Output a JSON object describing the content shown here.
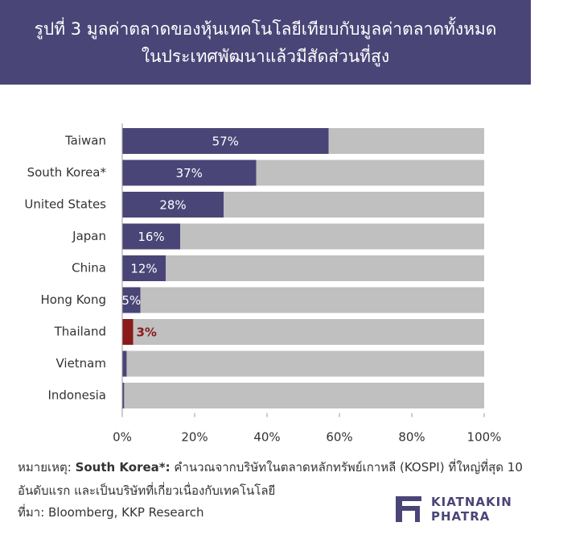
{
  "chart_data": {
    "type": "hbar",
    "title_lines": [
      "รูปที่ 3 มูลค่าตลาดของหุ้นเทคโนโลยีเทียบกับมูลค่าตลาดทั้งหมด",
      "ในประเทศพัฒนาแล้วมีสัดส่วนที่สูง"
    ],
    "categories": [
      "Taiwan",
      "South Korea*",
      "United States",
      "Japan",
      "China",
      "Hong Kong",
      "Thailand",
      "Vietnam",
      "Indonesia"
    ],
    "values": [
      57,
      37,
      28,
      16,
      12,
      5,
      3,
      1.2,
      0.5
    ],
    "value_labels": [
      "57%",
      "37%",
      "28%",
      "16%",
      "12%",
      "5%",
      "3%",
      null,
      null
    ],
    "colors": [
      "#4a4577",
      "#4a4577",
      "#4a4577",
      "#4a4577",
      "#4a4577",
      "#4a4577",
      "#8b1a1a",
      "#4a4577",
      "#4a4577"
    ],
    "track_color": "#c0c0c0",
    "xlim": [
      0,
      100
    ],
    "xticks": [
      {
        "value": 0,
        "label": "0%"
      },
      {
        "value": 20,
        "label": "20%"
      },
      {
        "value": 40,
        "label": "40%"
      },
      {
        "value": 60,
        "label": "60%"
      },
      {
        "value": 80,
        "label": "80%"
      },
      {
        "value": 100,
        "label": "100%"
      }
    ],
    "grid": false
  },
  "footer": {
    "note_prefix": "หมายเหตุ:",
    "note_key": "South Korea*:",
    "note_text": "คำนวณจากบริษัทในตลาดหลักทรัพย์เกาหลี (KOSPI) ที่ใหญ่ที่สุด 10 อันดับแรก และเป็นบริษัทที่เกี่ยวเนื่องกับเทคโนโลยี",
    "source": "ที่มา: Bloomberg, KKP Research",
    "logo_lines": [
      "KIATNAKIN",
      "PHATRA"
    ]
  }
}
